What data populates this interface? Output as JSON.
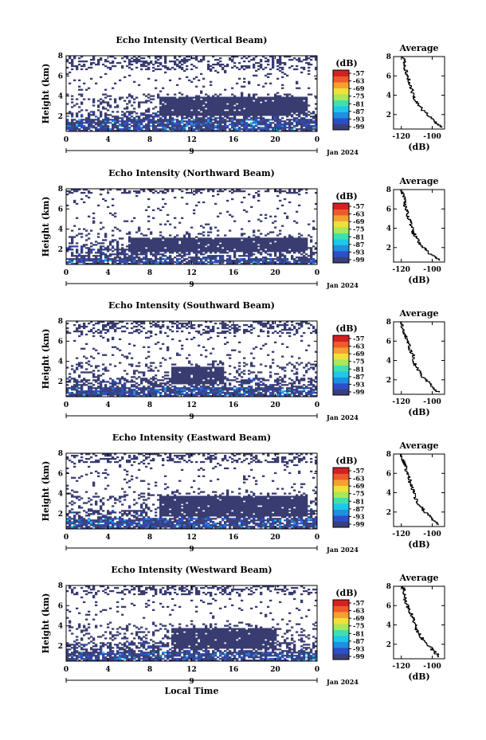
{
  "chart_data": [
    {
      "type": "heatmap",
      "title": "Echo Intensity (Vertical Beam)",
      "ylabel": "Height (km)",
      "xlabel": "",
      "x_ticks": [
        "0",
        "4",
        "8",
        "12",
        "16",
        "20",
        "0"
      ],
      "y_ticks": [
        "2",
        "4",
        "6",
        "8"
      ],
      "xlim": [
        0,
        24
      ],
      "ylim": [
        0.5,
        8
      ],
      "date_labels": [
        "9",
        "Jan 2024"
      ],
      "colorbar": {
        "unit": "(dB)",
        "ticks": [
          "-57",
          "-63",
          "-69",
          "-75",
          "-81",
          "-87",
          "-93",
          "-99"
        ]
      },
      "features": {
        "gray_layer": {
          "x": [
            9,
            23
          ],
          "y": [
            2.0,
            3.9
          ]
        },
        "blue_band_top": 1.7,
        "sparse_top": 6.6
      },
      "average_profile": {
        "title": "Average",
        "xlabel": "(dB)",
        "x_ticks": [
          "-120",
          "-100"
        ],
        "y_ticks": [
          "2",
          "4",
          "6",
          "8"
        ],
        "xlim": [
          -125,
          -92
        ],
        "ylim": [
          0.5,
          8
        ],
        "x": [
          -94,
          -96,
          -100,
          -103,
          -106,
          -109,
          -111,
          -112,
          -113,
          -114,
          -115,
          -116,
          -117,
          -118,
          -118,
          -119
        ],
        "y": [
          0.7,
          1.0,
          1.5,
          2.0,
          2.5,
          3.0,
          3.5,
          4.0,
          4.5,
          5.0,
          5.5,
          6.0,
          6.5,
          7.0,
          7.5,
          8.0
        ]
      }
    },
    {
      "type": "heatmap",
      "title": "Echo Intensity (Northward Beam)",
      "ylabel": "Height (km)",
      "xlabel": "",
      "x_ticks": [
        "0",
        "4",
        "8",
        "12",
        "16",
        "20",
        "0"
      ],
      "y_ticks": [
        "2",
        "4",
        "6",
        "8"
      ],
      "xlim": [
        0,
        24
      ],
      "ylim": [
        0.5,
        8
      ],
      "date_labels": [
        "9",
        "Jan 2024"
      ],
      "colorbar": {
        "unit": "(dB)",
        "ticks": [
          "-57",
          "-63",
          "-69",
          "-75",
          "-81",
          "-87",
          "-93",
          "-99"
        ]
      },
      "features": {
        "gray_layer": {
          "x": [
            6,
            23
          ],
          "y": [
            1.8,
            3.2
          ]
        },
        "blue_band_top": 1.2,
        "sparse_top": 7.5
      },
      "average_profile": {
        "title": "Average",
        "xlabel": "(dB)",
        "x_ticks": [
          "-120",
          "-100"
        ],
        "y_ticks": [
          "2",
          "4",
          "6",
          "8"
        ],
        "xlim": [
          -125,
          -92
        ],
        "ylim": [
          0.5,
          8
        ],
        "x": [
          -95,
          -98,
          -102,
          -105,
          -108,
          -110,
          -112,
          -113,
          -114,
          -115,
          -116,
          -117,
          -118,
          -118,
          -119,
          -120
        ],
        "y": [
          0.7,
          1.0,
          1.5,
          2.0,
          2.5,
          3.0,
          3.5,
          4.0,
          4.5,
          5.0,
          5.5,
          6.0,
          6.5,
          7.0,
          7.5,
          8.0
        ]
      }
    },
    {
      "type": "heatmap",
      "title": "Echo Intensity (Southward Beam)",
      "ylabel": "Height (km)",
      "xlabel": "",
      "x_ticks": [
        "0",
        "4",
        "8",
        "12",
        "16",
        "20",
        "0"
      ],
      "y_ticks": [
        "2",
        "4",
        "6",
        "8"
      ],
      "xlim": [
        0,
        24
      ],
      "ylim": [
        0.5,
        8
      ],
      "date_labels": [
        "9",
        "Jan 2024"
      ],
      "colorbar": {
        "unit": "(dB)",
        "ticks": [
          "-57",
          "-63",
          "-69",
          "-75",
          "-81",
          "-87",
          "-93",
          "-99"
        ]
      },
      "features": {
        "gray_layer": {
          "x": [
            10,
            15
          ],
          "y": [
            1.8,
            3.5
          ]
        },
        "blue_band_top": 1.5,
        "sparse_top": 6.8
      },
      "average_profile": {
        "title": "Average",
        "xlabel": "(dB)",
        "x_ticks": [
          "-120",
          "-100"
        ],
        "y_ticks": [
          "2",
          "4",
          "6",
          "8"
        ],
        "xlim": [
          -125,
          -92
        ],
        "ylim": [
          0.5,
          8
        ],
        "x": [
          -95,
          -98,
          -101,
          -104,
          -107,
          -109,
          -111,
          -112,
          -112,
          -114,
          -115,
          -116,
          -117,
          -118,
          -119,
          -120
        ],
        "y": [
          0.7,
          1.0,
          1.5,
          2.0,
          2.5,
          3.0,
          3.5,
          4.0,
          4.5,
          5.0,
          5.5,
          6.0,
          6.5,
          7.0,
          7.5,
          8.0
        ]
      }
    },
    {
      "type": "heatmap",
      "title": "Echo Intensity (Eastward Beam)",
      "ylabel": "Height (km)",
      "xlabel": "",
      "x_ticks": [
        "0",
        "4",
        "8",
        "12",
        "16",
        "20",
        "0"
      ],
      "y_ticks": [
        "2",
        "4",
        "6",
        "8"
      ],
      "xlim": [
        0,
        24
      ],
      "ylim": [
        0.5,
        8
      ],
      "date_labels": [
        "9",
        "Jan 2024"
      ],
      "colorbar": {
        "unit": "(dB)",
        "ticks": [
          "-57",
          "-63",
          "-69",
          "-75",
          "-81",
          "-87",
          "-93",
          "-99"
        ]
      },
      "features": {
        "gray_layer": {
          "x": [
            9,
            23
          ],
          "y": [
            1.8,
            3.8
          ]
        },
        "blue_band_top": 1.6,
        "sparse_top": 7.0
      },
      "average_profile": {
        "title": "Average",
        "xlabel": "(dB)",
        "x_ticks": [
          "-120",
          "-100"
        ],
        "y_ticks": [
          "2",
          "4",
          "6",
          "8"
        ],
        "xlim": [
          -125,
          -92
        ],
        "ylim": [
          0.5,
          8
        ],
        "x": [
          -95,
          -98,
          -101,
          -104,
          -107,
          -109,
          -111,
          -112,
          -113,
          -114,
          -115,
          -116,
          -117,
          -118,
          -119,
          -120
        ],
        "y": [
          0.7,
          1.0,
          1.5,
          2.0,
          2.5,
          3.0,
          3.5,
          4.0,
          4.5,
          5.0,
          5.5,
          6.0,
          6.5,
          7.0,
          7.5,
          8.0
        ]
      }
    },
    {
      "type": "heatmap",
      "title": "Echo Intensity (Westward Beam)",
      "ylabel": "Height (km)",
      "xlabel": "Local Time",
      "x_ticks": [
        "0",
        "4",
        "8",
        "12",
        "16",
        "20",
        "0"
      ],
      "y_ticks": [
        "2",
        "4",
        "6",
        "8"
      ],
      "xlim": [
        0,
        24
      ],
      "ylim": [
        0.5,
        8
      ],
      "date_labels": [
        "9",
        "Jan 2024"
      ],
      "colorbar": {
        "unit": "(dB)",
        "ticks": [
          "-57",
          "-63",
          "-69",
          "-75",
          "-81",
          "-87",
          "-93",
          "-99"
        ]
      },
      "features": {
        "gray_layer": {
          "x": [
            10,
            20
          ],
          "y": [
            1.8,
            3.8
          ]
        },
        "blue_band_top": 1.4,
        "sparse_top": 7.0
      },
      "average_profile": {
        "title": "Average",
        "xlabel": "(dB)",
        "x_ticks": [
          "-120",
          "-100"
        ],
        "y_ticks": [
          "2",
          "4",
          "6",
          "8"
        ],
        "xlim": [
          -125,
          -92
        ],
        "ylim": [
          0.5,
          8
        ],
        "x": [
          -95,
          -97,
          -100,
          -103,
          -106,
          -108,
          -110,
          -111,
          -112,
          -113,
          -115,
          -116,
          -117,
          -118,
          -118,
          -119
        ],
        "y": [
          0.7,
          1.0,
          1.5,
          2.0,
          2.5,
          3.0,
          3.5,
          4.0,
          4.5,
          5.0,
          5.5,
          6.0,
          6.5,
          7.0,
          7.5,
          8.0
        ]
      }
    }
  ],
  "colors": {
    "gray_layer": "#383c70",
    "colormap": [
      "#3a3f77",
      "#2b4fc7",
      "#1f8fe0",
      "#1ec8e8",
      "#3fe0b0",
      "#a8e85a",
      "#f0e03a",
      "#f5a032",
      "#ee5a2a",
      "#d42020"
    ]
  }
}
